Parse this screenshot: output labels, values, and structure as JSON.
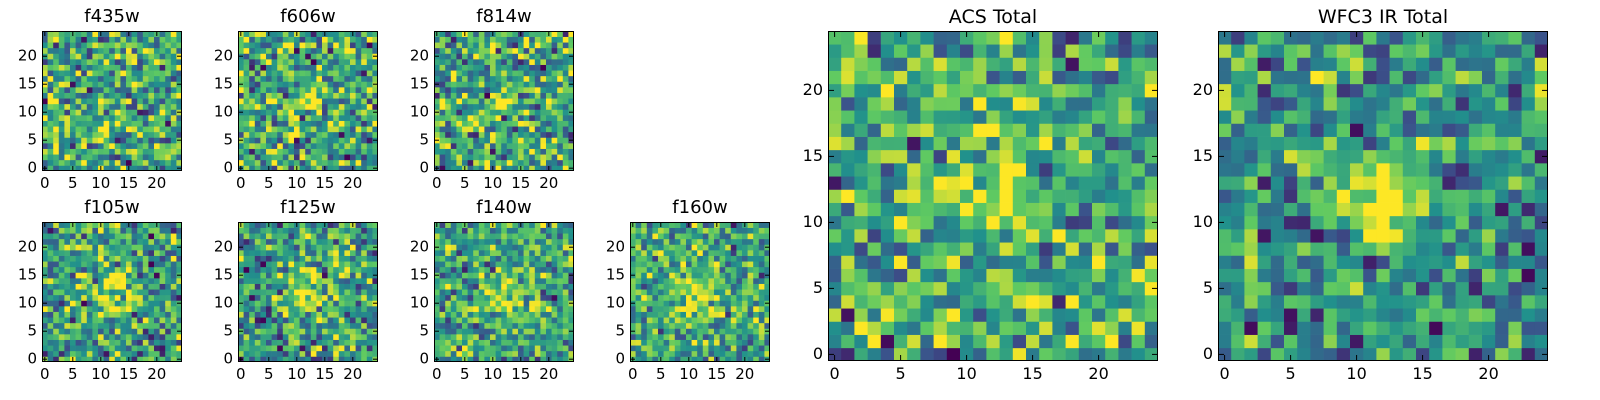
{
  "figure": {
    "colormap": "viridis",
    "colormap_stops": [
      "#440154",
      "#3b528b",
      "#21918c",
      "#5ec962",
      "#fde725"
    ]
  },
  "chart_data": [
    {
      "type": "heatmap",
      "id": "f435w",
      "title": "f435w",
      "grid_size": 25,
      "xlim": [
        -0.5,
        24.5
      ],
      "ylim": [
        -0.5,
        24.5
      ],
      "xticks": [
        0,
        5,
        10,
        15,
        20
      ],
      "yticks": [
        0,
        5,
        10,
        15,
        20
      ],
      "xtick_labels": [
        "0",
        "5",
        "10",
        "15",
        "20"
      ],
      "ytick_labels": [
        "0",
        "5",
        "10",
        "15",
        "20"
      ],
      "colormap": "viridis",
      "seed": 11,
      "mean_level": 0.6,
      "noise": 0.5,
      "source": null
    },
    {
      "type": "heatmap",
      "id": "f606w",
      "title": "f606w",
      "grid_size": 25,
      "xlim": [
        -0.5,
        24.5
      ],
      "ylim": [
        -0.5,
        24.5
      ],
      "xticks": [
        0,
        5,
        10,
        15,
        20
      ],
      "yticks": [
        0,
        5,
        10,
        15,
        20
      ],
      "xtick_labels": [
        "0",
        "5",
        "10",
        "15",
        "20"
      ],
      "ytick_labels": [
        "0",
        "5",
        "10",
        "15",
        "20"
      ],
      "colormap": "viridis",
      "seed": 23,
      "mean_level": 0.6,
      "noise": 0.5,
      "source": {
        "x": 12,
        "y": 12,
        "amplitude": 0.35,
        "sigma": 1.5
      }
    },
    {
      "type": "heatmap",
      "id": "f814w",
      "title": "f814w",
      "grid_size": 25,
      "xlim": [
        -0.5,
        24.5
      ],
      "ylim": [
        -0.5,
        24.5
      ],
      "xticks": [
        0,
        5,
        10,
        15,
        20
      ],
      "yticks": [
        0,
        5,
        10,
        15,
        20
      ],
      "xtick_labels": [
        "0",
        "5",
        "10",
        "15",
        "20"
      ],
      "ytick_labels": [
        "0",
        "5",
        "10",
        "15",
        "20"
      ],
      "colormap": "viridis",
      "seed": 37,
      "mean_level": 0.6,
      "noise": 0.5,
      "source": {
        "x": 12,
        "y": 12,
        "amplitude": 0.25,
        "sigma": 1.5
      }
    },
    {
      "type": "heatmap",
      "id": "f105w",
      "title": "f105w",
      "grid_size": 25,
      "xlim": [
        -0.5,
        24.5
      ],
      "ylim": [
        -0.5,
        24.5
      ],
      "xticks": [
        0,
        5,
        10,
        15,
        20
      ],
      "yticks": [
        0,
        5,
        10,
        15,
        20
      ],
      "xtick_labels": [
        "0",
        "5",
        "10",
        "15",
        "20"
      ],
      "ytick_labels": [
        "0",
        "5",
        "10",
        "15",
        "20"
      ],
      "colormap": "viridis",
      "seed": 41,
      "mean_level": 0.55,
      "noise": 0.45,
      "source": {
        "x": 12,
        "y": 12,
        "amplitude": 0.45,
        "sigma": 2.5
      }
    },
    {
      "type": "heatmap",
      "id": "f125w",
      "title": "f125w",
      "grid_size": 25,
      "xlim": [
        -0.5,
        24.5
      ],
      "ylim": [
        -0.5,
        24.5
      ],
      "xticks": [
        0,
        5,
        10,
        15,
        20
      ],
      "yticks": [
        0,
        5,
        10,
        15,
        20
      ],
      "xtick_labels": [
        "0",
        "5",
        "10",
        "15",
        "20"
      ],
      "ytick_labels": [
        "0",
        "5",
        "10",
        "15",
        "20"
      ],
      "colormap": "viridis",
      "seed": 53,
      "mean_level": 0.55,
      "noise": 0.45,
      "source": {
        "x": 12,
        "y": 12,
        "amplitude": 0.45,
        "sigma": 2.5
      }
    },
    {
      "type": "heatmap",
      "id": "f140w",
      "title": "f140w",
      "grid_size": 25,
      "xlim": [
        -0.5,
        24.5
      ],
      "ylim": [
        -0.5,
        24.5
      ],
      "xticks": [
        0,
        5,
        10,
        15,
        20
      ],
      "yticks": [
        0,
        5,
        10,
        15,
        20
      ],
      "xtick_labels": [
        "0",
        "5",
        "10",
        "15",
        "20"
      ],
      "ytick_labels": [
        "0",
        "5",
        "10",
        "15",
        "20"
      ],
      "colormap": "viridis",
      "seed": 67,
      "mean_level": 0.6,
      "noise": 0.4,
      "source": {
        "x": 12,
        "y": 12,
        "amplitude": 0.35,
        "sigma": 2.5
      }
    },
    {
      "type": "heatmap",
      "id": "f160w",
      "title": "f160w",
      "grid_size": 25,
      "xlim": [
        -0.5,
        24.5
      ],
      "ylim": [
        -0.5,
        24.5
      ],
      "xticks": [
        0,
        5,
        10,
        15,
        20
      ],
      "yticks": [
        0,
        5,
        10,
        15,
        20
      ],
      "xtick_labels": [
        "0",
        "5",
        "10",
        "15",
        "20"
      ],
      "ytick_labels": [
        "0",
        "5",
        "10",
        "15",
        "20"
      ],
      "colormap": "viridis",
      "seed": 79,
      "mean_level": 0.6,
      "noise": 0.4,
      "source": {
        "x": 11,
        "y": 11,
        "amplitude": 0.35,
        "sigma": 2.5
      }
    },
    {
      "type": "heatmap",
      "id": "acs-total",
      "title": "ACS Total",
      "grid_size": 25,
      "xlim": [
        -0.5,
        24.5
      ],
      "ylim": [
        -0.5,
        24.5
      ],
      "xticks": [
        0,
        5,
        10,
        15,
        20
      ],
      "yticks": [
        0,
        5,
        10,
        15,
        20
      ],
      "xtick_labels": [
        "0",
        "5",
        "10",
        "15",
        "20"
      ],
      "ytick_labels": [
        "0",
        "5",
        "10",
        "15",
        "20"
      ],
      "colormap": "viridis",
      "seed": 97,
      "mean_level": 0.6,
      "noise": 0.45,
      "source": {
        "x": 12,
        "y": 12,
        "amplitude": 0.5,
        "sigma": 1.6
      }
    },
    {
      "type": "heatmap",
      "id": "wfc3-ir-total",
      "title": "WFC3 IR Total",
      "grid_size": 25,
      "xlim": [
        -0.5,
        24.5
      ],
      "ylim": [
        -0.5,
        24.5
      ],
      "xticks": [
        0,
        5,
        10,
        15,
        20
      ],
      "yticks": [
        0,
        5,
        10,
        15,
        20
      ],
      "xtick_labels": [
        "0",
        "5",
        "10",
        "15",
        "20"
      ],
      "ytick_labels": [
        "0",
        "5",
        "10",
        "15",
        "20"
      ],
      "colormap": "viridis",
      "seed": 131,
      "mean_level": 0.5,
      "noise": 0.4,
      "source": {
        "x": 12,
        "y": 12,
        "amplitude": 0.6,
        "sigma": 2.2
      }
    }
  ]
}
